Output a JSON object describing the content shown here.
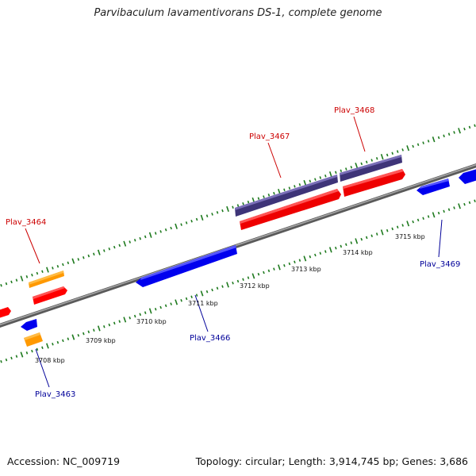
{
  "title": "Parvibaculum lavamentivorans DS-1, complete genome",
  "footer": {
    "accession": "Accession: NC_009719",
    "topology": "Topology: circular; Length: 3,914,745 bp; Genes: 3,686"
  },
  "colors": {
    "backbone": "#808080",
    "tick": "#1e7a1e",
    "red_gene": "#ff0000",
    "blue_gene": "#0000ff",
    "orange_gene": "#ff9900",
    "purple_gene": "#5a4d9a",
    "label_top": "#cc0000",
    "label_bottom": "#000099"
  },
  "scale_labels": [
    "3708 kbp",
    "3709 kbp",
    "3710 kbp",
    "3711 kbp",
    "3712 kbp",
    "3713 kbp",
    "3714 kbp",
    "3715 kbp"
  ],
  "gene_labels": [
    {
      "text": "Plav_3464",
      "strand": "top"
    },
    {
      "text": "Plav_3467",
      "strand": "top"
    },
    {
      "text": "Plav_3468",
      "strand": "top"
    },
    {
      "text": "Plav_3463",
      "strand": "bottom"
    },
    {
      "text": "Plav_3466",
      "strand": "bottom"
    },
    {
      "text": "Plav_3469",
      "strand": "bottom"
    }
  ]
}
